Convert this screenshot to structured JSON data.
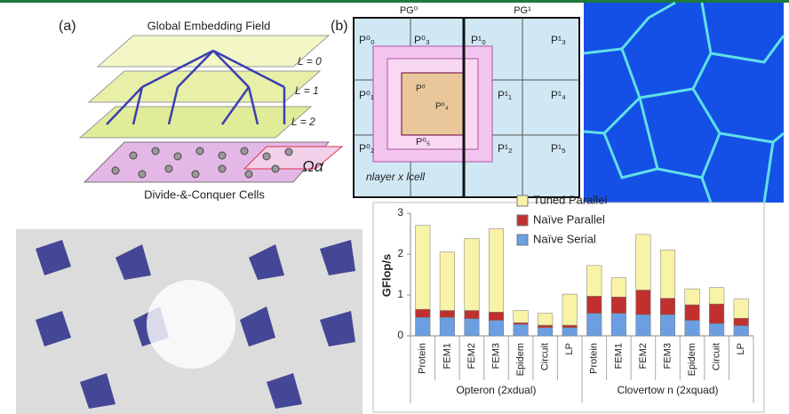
{
  "panel_a": {
    "label": "(a)",
    "title": "Global Embedding Field",
    "levels": [
      "L = 0",
      "L = 1",
      "L = 2"
    ],
    "omega": "Ωα",
    "caption": "Divide-&-Conquer Cells"
  },
  "panel_b": {
    "label": "(b)",
    "groups": [
      "PG⁰",
      "PG¹"
    ],
    "cells": [
      "P⁰₀",
      "P⁰₃",
      "P⁰₁",
      "P⁰₂",
      "P⁰₅",
      "P¹₀",
      "P¹₃",
      "P¹₁",
      "P¹₄",
      "P¹₂",
      "P¹₅"
    ],
    "center": [
      "P⁰",
      "P⁰₄"
    ],
    "formula": "nlayer x lcell"
  },
  "chart_data": {
    "type": "bar",
    "stacked": true,
    "y_label": "GFlop/s",
    "categories": [
      "Protein",
      "FEM1",
      "FEM2",
      "FEM3",
      "Epidem",
      "Circuit",
      "LP",
      "Protein",
      "FEM1",
      "FEM2",
      "FEM3",
      "Epidem",
      "Circuit",
      "LP"
    ],
    "groups": [
      "Opteron (2xdual)",
      "Clovertow n (2xquad)"
    ],
    "series": [
      {
        "name": "Naïve Serial",
        "color": "#6b9fe2",
        "values": [
          0.45,
          0.45,
          0.42,
          0.38,
          0.28,
          0.2,
          0.2,
          0.55,
          0.55,
          0.52,
          0.52,
          0.38,
          0.3,
          0.25
        ]
      },
      {
        "name": "Naïve Parallel",
        "color": "#c0302e",
        "values": [
          0.2,
          0.17,
          0.2,
          0.2,
          0.04,
          0.06,
          0.06,
          0.42,
          0.4,
          0.6,
          0.4,
          0.38,
          0.48,
          0.18
        ]
      },
      {
        "name": "Tuned Parallel",
        "color": "#f8f3a6",
        "values": [
          2.05,
          1.43,
          1.76,
          2.04,
          0.3,
          0.29,
          0.76,
          0.75,
          0.47,
          1.36,
          1.18,
          0.39,
          0.4,
          0.47
        ]
      }
    ],
    "ylim": [
      0,
      3
    ],
    "yticks": [
      0,
      1,
      2,
      3
    ],
    "grid": false
  }
}
